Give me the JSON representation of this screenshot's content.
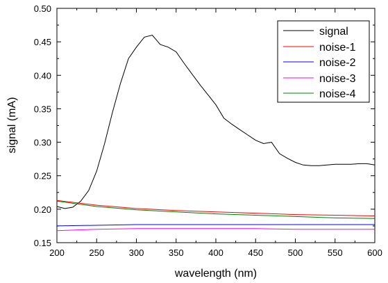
{
  "chart_data": {
    "type": "line",
    "title": "",
    "xlabel": "wavelength (nm)",
    "ylabel": "signal (mA)",
    "xlim": [
      200,
      600
    ],
    "ylim": [
      0.15,
      0.5
    ],
    "x_ticks": [
      200,
      250,
      300,
      350,
      400,
      450,
      500,
      550,
      600
    ],
    "x_tick_labels": [
      "200",
      "250",
      "300",
      "350",
      "400",
      "450",
      "500",
      "550",
      "600"
    ],
    "y_ticks": [
      0.15,
      0.2,
      0.25,
      0.3,
      0.35,
      0.4,
      0.45,
      0.5
    ],
    "y_tick_labels": [
      "0.15",
      "0.20",
      "0.25",
      "0.30",
      "0.35",
      "0.40",
      "0.45",
      "0.50"
    ],
    "grid": false,
    "legend_position": "top-right",
    "series": [
      {
        "name": "signal",
        "color": "#000000",
        "x": [
          200,
          210,
          220,
          230,
          240,
          250,
          260,
          270,
          280,
          290,
          300,
          310,
          320,
          330,
          340,
          350,
          360,
          370,
          380,
          390,
          400,
          410,
          420,
          430,
          440,
          450,
          460,
          470,
          480,
          490,
          500,
          510,
          520,
          530,
          540,
          550,
          560,
          570,
          580,
          590,
          600
        ],
        "y": [
          0.204,
          0.201,
          0.203,
          0.212,
          0.228,
          0.257,
          0.298,
          0.345,
          0.388,
          0.425,
          0.442,
          0.457,
          0.46,
          0.446,
          0.442,
          0.435,
          0.418,
          0.402,
          0.386,
          0.371,
          0.356,
          0.336,
          0.327,
          0.319,
          0.311,
          0.303,
          0.298,
          0.3,
          0.283,
          0.276,
          0.27,
          0.266,
          0.265,
          0.265,
          0.266,
          0.267,
          0.267,
          0.267,
          0.268,
          0.268,
          0.266
        ]
      },
      {
        "name": "noise-1",
        "color": "#ff0000",
        "x": [
          200,
          250,
          300,
          350,
          400,
          450,
          500,
          550,
          600
        ],
        "y": [
          0.213,
          0.206,
          0.201,
          0.198,
          0.196,
          0.194,
          0.192,
          0.191,
          0.19
        ]
      },
      {
        "name": "noise-2",
        "color": "#0000ff",
        "x": [
          200,
          250,
          300,
          350,
          400,
          450,
          500,
          550,
          600
        ],
        "y": [
          0.175,
          0.176,
          0.177,
          0.177,
          0.177,
          0.177,
          0.177,
          0.177,
          0.177
        ]
      },
      {
        "name": "noise-3",
        "color": "#ff00ff",
        "x": [
          200,
          250,
          300,
          350,
          400,
          450,
          500,
          550,
          600
        ],
        "y": [
          0.168,
          0.17,
          0.171,
          0.171,
          0.171,
          0.171,
          0.17,
          0.17,
          0.17
        ]
      },
      {
        "name": "noise-4",
        "color": "#008000",
        "x": [
          200,
          250,
          300,
          350,
          400,
          450,
          500,
          550,
          600
        ],
        "y": [
          0.212,
          0.204,
          0.199,
          0.196,
          0.193,
          0.191,
          0.189,
          0.187,
          0.186
        ]
      }
    ]
  }
}
